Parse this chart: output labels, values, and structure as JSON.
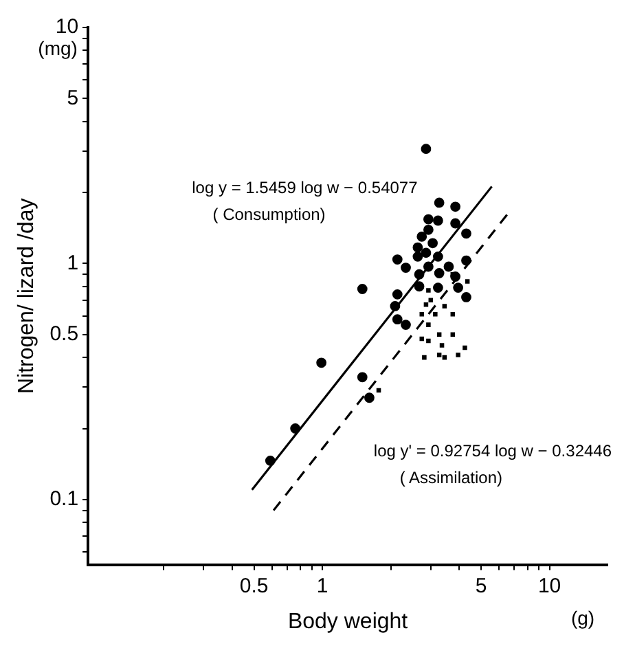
{
  "chart_data": {
    "type": "scatter",
    "xlabel": "Body weight",
    "ylabel": "Nitrogen/ lizard /day",
    "log": "xy",
    "grid": false,
    "legend": false,
    "xlim": [
      0.093,
      18
    ],
    "ylim": [
      0.053,
      10
    ],
    "xticks": [
      {
        "value": 0.2,
        "label": null
      },
      {
        "value": 0.3,
        "label": null
      },
      {
        "value": 0.4,
        "label": null
      },
      {
        "value": 0.5,
        "label": "0.5"
      },
      {
        "value": 0.6,
        "label": null
      },
      {
        "value": 0.7,
        "label": null
      },
      {
        "value": 0.8,
        "label": null
      },
      {
        "value": 0.9,
        "label": null
      },
      1,
      {
        "value": 2,
        "label": null
      },
      {
        "value": 3,
        "label": null
      },
      {
        "value": 4,
        "label": null
      },
      5,
      {
        "value": 6,
        "label": null
      },
      {
        "value": 7,
        "label": null
      },
      {
        "value": 8,
        "label": null
      },
      {
        "value": 9,
        "label": null
      },
      10
    ],
    "yticks": [
      {
        "value": 0.06,
        "label": null
      },
      {
        "value": 0.07,
        "label": null
      },
      {
        "value": 0.08,
        "label": null
      },
      {
        "value": 0.09,
        "label": null
      },
      0.1,
      {
        "value": 0.2,
        "label": null
      },
      {
        "value": 0.3,
        "label": null
      },
      {
        "value": 0.4,
        "label": null
      },
      0.5,
      {
        "value": 0.6,
        "label": null
      },
      {
        "value": 0.7,
        "label": null
      },
      {
        "value": 0.8,
        "label": null
      },
      {
        "value": 0.9,
        "label": null
      },
      1,
      {
        "value": 2,
        "label": null
      },
      {
        "value": 3,
        "label": null
      },
      {
        "value": 4,
        "label": null
      },
      5,
      {
        "value": 6,
        "label": null
      },
      {
        "value": 7,
        "label": null
      },
      {
        "value": 8,
        "label": null
      },
      {
        "value": 9,
        "label": null
      },
      10
    ],
    "annotations": [
      "(mg)",
      "(g)",
      "log y = 1.5459 log w − 0.54077",
      "( Consumption)",
      "log y' = 0.92754 log w − 0.32446",
      "( Assimilation)"
    ],
    "series": [
      {
        "type": "scatter",
        "color": "#000000",
        "marker": "circle",
        "x": [
          1.5,
          0.99,
          1.5,
          1.61,
          0.76,
          0.59,
          2.86,
          3.27,
          3.85,
          2.93,
          3.23,
          3.85,
          2.93,
          4.3,
          2.74,
          3.06,
          2.63,
          2.86,
          3.23,
          2.63,
          2.14,
          2.33,
          2.93,
          3.6,
          4.3,
          2.67,
          3.27,
          3.85,
          3.96,
          2.67,
          3.23,
          2.14,
          4.3,
          2.09,
          2.14,
          2.33
        ],
        "values": [
          0.78,
          0.38,
          0.33,
          0.27,
          0.2,
          0.146,
          3.06,
          1.81,
          1.74,
          1.54,
          1.52,
          1.48,
          1.39,
          1.34,
          1.3,
          1.22,
          1.17,
          1.11,
          1.07,
          1.07,
          1.04,
          0.96,
          0.97,
          0.97,
          1.03,
          0.9,
          0.91,
          0.88,
          0.79,
          0.8,
          0.79,
          0.74,
          0.72,
          0.66,
          0.58,
          0.55
        ]
      },
      {
        "type": "scatter",
        "color": "#000000",
        "marker": "square",
        "x": [
          2.93,
          3.0,
          2.86,
          3.45,
          3.14,
          2.74,
          3.75,
          2.93,
          3.27,
          3.75,
          2.74,
          3.36,
          2.93,
          4.24,
          3.96,
          3.27,
          3.45,
          2.81,
          1.77,
          4.35,
          3.75
        ],
        "values": [
          0.77,
          0.7,
          0.67,
          0.66,
          0.61,
          0.61,
          0.61,
          0.55,
          0.5,
          0.5,
          0.48,
          0.45,
          0.47,
          0.44,
          0.41,
          0.41,
          0.4,
          0.4,
          0.29,
          0.84,
          0.9
        ]
      },
      {
        "type": "line",
        "color": "#000000",
        "line_style": "solid",
        "marker": "none",
        "x": [
          0.49,
          5.57
        ],
        "values": [
          0.11,
          2.12
        ]
      },
      {
        "type": "line",
        "color": "#000000",
        "line_style": "dashed",
        "marker": "none",
        "x": [
          0.61,
          6.7
        ],
        "values": [
          0.09,
          1.67
        ]
      }
    ]
  }
}
